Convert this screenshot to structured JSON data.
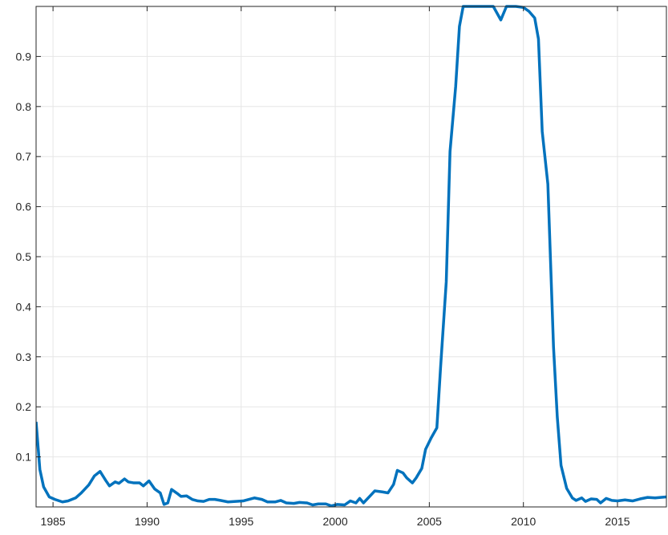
{
  "chart_data": {
    "type": "line",
    "title": "",
    "xlabel": "",
    "ylabel": "",
    "xlim": [
      1984.1,
      2017.6
    ],
    "ylim": [
      0,
      1
    ],
    "x_ticks": [
      1985,
      1990,
      1995,
      2000,
      2005,
      2010,
      2015
    ],
    "x_tick_labels": [
      "1985",
      "1990",
      "1995",
      "2000",
      "2005",
      "2010",
      "2015"
    ],
    "y_ticks": [
      0.1,
      0.2,
      0.3,
      0.4,
      0.5,
      0.6,
      0.7,
      0.8,
      0.9
    ],
    "y_tick_labels": [
      "0.1",
      "0.2",
      "0.3",
      "0.4",
      "0.5",
      "0.6",
      "0.7",
      "0.8",
      "0.9"
    ],
    "grid": true,
    "legend": "none",
    "colors": {
      "line": "#0072BD",
      "grid": "#e6e6e6",
      "axis": "#262626"
    },
    "series": [
      {
        "values": [
          [
            1984.1,
            0.17
          ],
          [
            1984.3,
            0.075
          ],
          [
            1984.5,
            0.04
          ],
          [
            1984.8,
            0.02
          ],
          [
            1985.1,
            0.015
          ],
          [
            1985.5,
            0.01
          ],
          [
            1985.8,
            0.012
          ],
          [
            1986.2,
            0.018
          ],
          [
            1986.5,
            0.028
          ],
          [
            1986.9,
            0.044
          ],
          [
            1987.2,
            0.062
          ],
          [
            1987.5,
            0.071
          ],
          [
            1987.8,
            0.053
          ],
          [
            1988.0,
            0.042
          ],
          [
            1988.3,
            0.05
          ],
          [
            1988.5,
            0.047
          ],
          [
            1988.8,
            0.056
          ],
          [
            1989.0,
            0.05
          ],
          [
            1989.3,
            0.048
          ],
          [
            1989.6,
            0.048
          ],
          [
            1989.8,
            0.042
          ],
          [
            1990.1,
            0.052
          ],
          [
            1990.4,
            0.036
          ],
          [
            1990.7,
            0.028
          ],
          [
            1990.9,
            0.005
          ],
          [
            1991.1,
            0.008
          ],
          [
            1991.3,
            0.035
          ],
          [
            1991.6,
            0.027
          ],
          [
            1991.8,
            0.021
          ],
          [
            1992.1,
            0.022
          ],
          [
            1992.4,
            0.015
          ],
          [
            1992.7,
            0.012
          ],
          [
            1993.0,
            0.011
          ],
          [
            1993.3,
            0.015
          ],
          [
            1993.6,
            0.015
          ],
          [
            1993.9,
            0.013
          ],
          [
            1994.3,
            0.01
          ],
          [
            1994.7,
            0.011
          ],
          [
            1995.1,
            0.012
          ],
          [
            1995.4,
            0.015
          ],
          [
            1995.7,
            0.018
          ],
          [
            1996.1,
            0.015
          ],
          [
            1996.4,
            0.01
          ],
          [
            1996.8,
            0.01
          ],
          [
            1997.1,
            0.013
          ],
          [
            1997.4,
            0.008
          ],
          [
            1997.8,
            0.007
          ],
          [
            1998.1,
            0.009
          ],
          [
            1998.5,
            0.008
          ],
          [
            1998.8,
            0.004
          ],
          [
            1999.1,
            0.006
          ],
          [
            1999.5,
            0.006
          ],
          [
            1999.8,
            0.002
          ],
          [
            2000.1,
            0.005
          ],
          [
            2000.5,
            0.004
          ],
          [
            2000.8,
            0.012
          ],
          [
            2001.1,
            0.008
          ],
          [
            2001.3,
            0.017
          ],
          [
            2001.5,
            0.008
          ],
          [
            2001.8,
            0.02
          ],
          [
            2002.1,
            0.032
          ],
          [
            2002.5,
            0.03
          ],
          [
            2002.8,
            0.028
          ],
          [
            2003.1,
            0.045
          ],
          [
            2003.3,
            0.073
          ],
          [
            2003.6,
            0.068
          ],
          [
            2003.8,
            0.058
          ],
          [
            2004.1,
            0.048
          ],
          [
            2004.3,
            0.058
          ],
          [
            2004.6,
            0.077
          ],
          [
            2004.8,
            0.115
          ],
          [
            2005.1,
            0.138
          ],
          [
            2005.4,
            0.158
          ],
          [
            2005.6,
            0.28
          ],
          [
            2005.9,
            0.45
          ],
          [
            2006.1,
            0.71
          ],
          [
            2006.4,
            0.84
          ],
          [
            2006.6,
            0.96
          ],
          [
            2006.8,
            1.0
          ],
          [
            2007.1,
            1.0
          ],
          [
            2007.4,
            1.0
          ],
          [
            2007.9,
            1.0
          ],
          [
            2008.4,
            1.0
          ],
          [
            2008.8,
            0.973
          ],
          [
            2009.1,
            1.0
          ],
          [
            2009.6,
            1.0
          ],
          [
            2010.0,
            0.998
          ],
          [
            2010.3,
            0.99
          ],
          [
            2010.6,
            0.977
          ],
          [
            2010.8,
            0.935
          ],
          [
            2011.0,
            0.75
          ],
          [
            2011.3,
            0.645
          ],
          [
            2011.6,
            0.32
          ],
          [
            2011.8,
            0.18
          ],
          [
            2012.0,
            0.083
          ],
          [
            2012.3,
            0.037
          ],
          [
            2012.6,
            0.018
          ],
          [
            2012.8,
            0.013
          ],
          [
            2013.1,
            0.018
          ],
          [
            2013.3,
            0.011
          ],
          [
            2013.6,
            0.016
          ],
          [
            2013.9,
            0.015
          ],
          [
            2014.1,
            0.008
          ],
          [
            2014.4,
            0.017
          ],
          [
            2014.7,
            0.013
          ],
          [
            2015.0,
            0.012
          ],
          [
            2015.4,
            0.014
          ],
          [
            2015.8,
            0.012
          ],
          [
            2016.2,
            0.016
          ],
          [
            2016.6,
            0.019
          ],
          [
            2017.0,
            0.018
          ],
          [
            2017.6,
            0.02
          ]
        ]
      }
    ]
  }
}
